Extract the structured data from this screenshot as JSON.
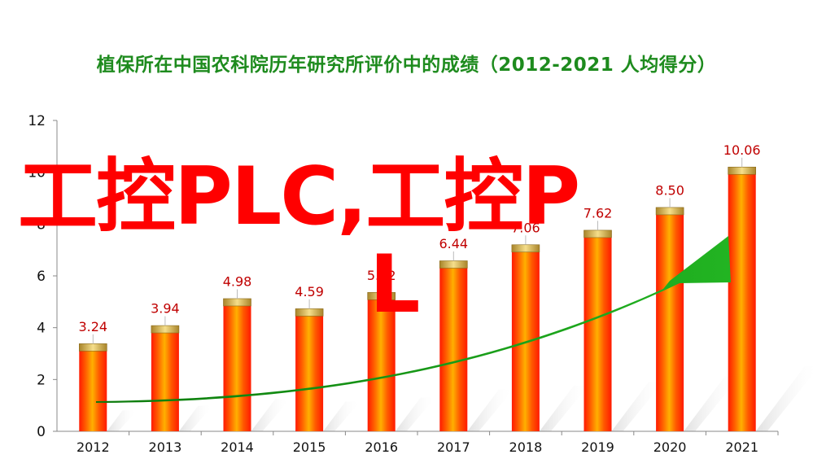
{
  "chart_data": {
    "type": "bar",
    "title": "植保所在中国农科院历年研究所评价中的成绩（2012-2021  人均得分）",
    "categories": [
      "2012",
      "2013",
      "2014",
      "2015",
      "2016",
      "2017",
      "2018",
      "2019",
      "2020",
      "2021"
    ],
    "values": [
      3.24,
      3.94,
      4.98,
      4.59,
      5.22,
      6.44,
      7.06,
      7.62,
      8.5,
      10.06
    ],
    "data_labels": [
      "3.24",
      "3.94",
      "4.98",
      "4.59",
      "5.22",
      "6.44",
      "7.06",
      "7.62",
      "8.50",
      "10.06"
    ],
    "yticks": [
      "0",
      "2",
      "4",
      "6",
      "8",
      "10",
      "12"
    ],
    "ylim": [
      0,
      12
    ],
    "xlabel": "",
    "ylabel": "",
    "grid": false,
    "legend": "none",
    "colors": {
      "bar_red": "#ff1a00",
      "bar_orange": "#ffa500",
      "bar_cap": "#d8b24a",
      "title": "#1e8b1e",
      "label": "#c00000",
      "arrow": "#1a9a1a"
    }
  },
  "watermark": {
    "line1": "工控PLC,工控P",
    "line2": "L"
  }
}
